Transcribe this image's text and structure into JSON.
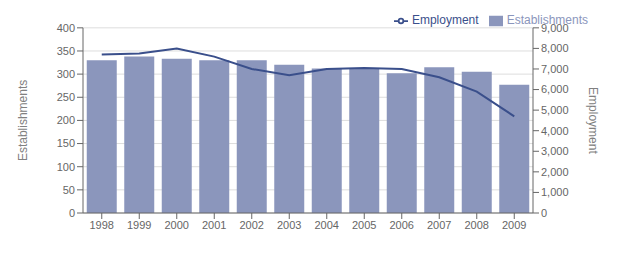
{
  "chart_data": {
    "type": "bar",
    "categories": [
      "1998",
      "1999",
      "2000",
      "2001",
      "2002",
      "2003",
      "2004",
      "2005",
      "2006",
      "2007",
      "2008",
      "2009"
    ],
    "series": [
      {
        "name": "Establishments",
        "type": "bar",
        "color": "#8B96BC",
        "values": [
          330,
          338,
          333,
          330,
          330,
          320,
          312,
          313,
          302,
          315,
          305,
          277
        ]
      },
      {
        "name": "Employment",
        "type": "line",
        "color": "#3A4F8B",
        "axis": "y2",
        "values": [
          7700,
          7750,
          8000,
          7600,
          7000,
          6700,
          7000,
          7050,
          7000,
          6600,
          5900,
          4700
        ]
      }
    ],
    "ylabel": "Establishments",
    "y2label": "Employment",
    "ylim": [
      0,
      400
    ],
    "yticks": [
      0,
      50,
      100,
      150,
      200,
      250,
      300,
      350,
      400
    ],
    "y2lim": [
      0,
      9000
    ],
    "y2ticks": [
      {
        "value": 0,
        "label": "0"
      },
      {
        "value": 1000,
        "label": "1,000"
      },
      {
        "value": 2000,
        "label": "2,000"
      },
      {
        "value": 3000,
        "label": "3,000"
      },
      {
        "value": 4000,
        "label": "4,000"
      },
      {
        "value": 5000,
        "label": "5,000"
      },
      {
        "value": 6000,
        "label": "6,000"
      },
      {
        "value": 7000,
        "label": "7,000"
      },
      {
        "value": 8000,
        "label": "8,000"
      },
      {
        "value": 9000,
        "label": "9,000"
      }
    ],
    "grid": true,
    "legend": "upper right"
  }
}
